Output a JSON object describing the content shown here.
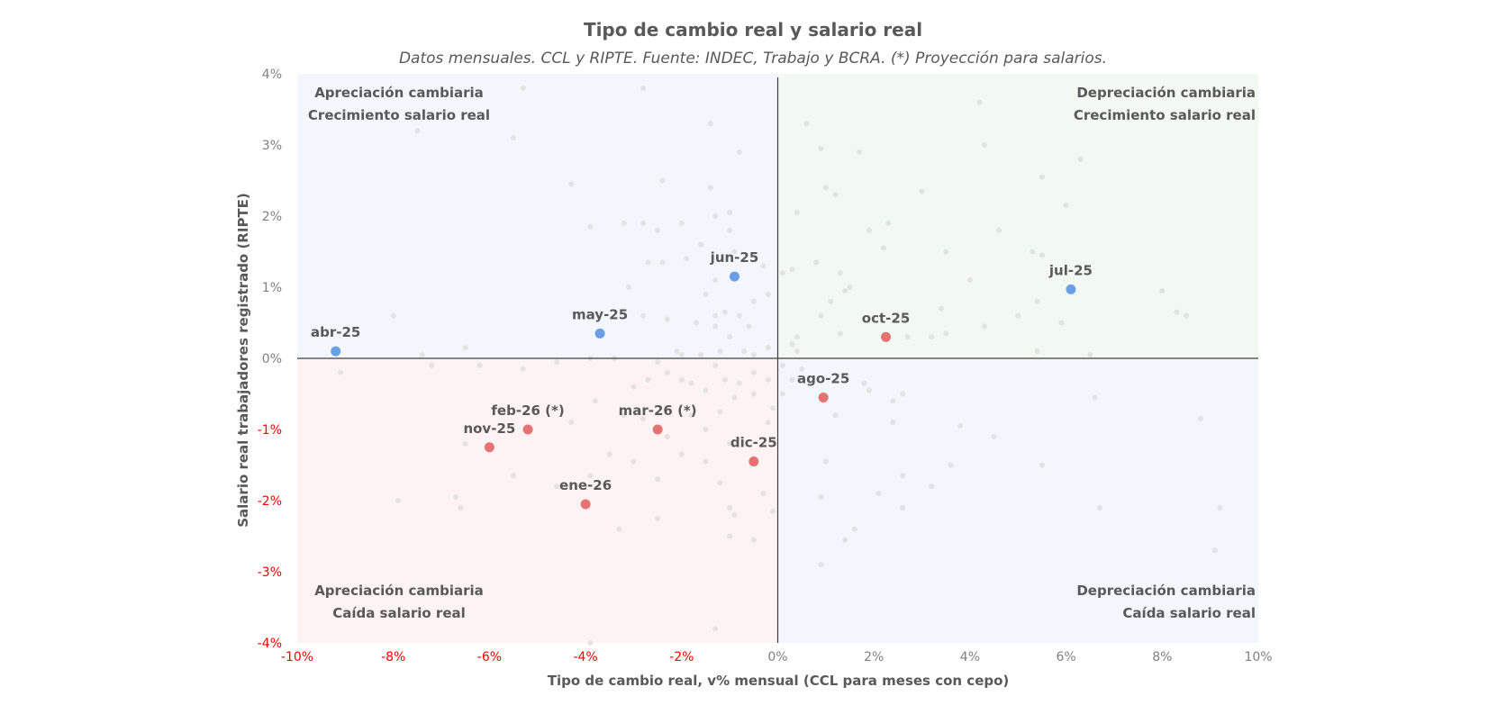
{
  "colors": {
    "highlight_blue": "#6a9ee6",
    "highlight_red": "#e57373",
    "history_gray": "#e3e3e3",
    "negative_tick": "#ff0000",
    "positive_tick": "#808080",
    "quad_blue": "#f3f6fd",
    "quad_green": "#f1f9f2",
    "quad_red": "#fdf3f2",
    "axis_line": "#404040"
  },
  "chart_data": {
    "type": "scatter",
    "title": "Tipo de cambio real y salario real",
    "subtitle": "Datos mensuales. CCL y RIPTE. Fuente: INDEC, Trabajo y BCRA. (*) Proyección para salarios.",
    "xlabel": "Tipo de cambio real, v% mensual (CCL para meses con cepo)",
    "ylabel": "Salario real trabajadores registrado (RIPTE)",
    "xlim": [
      -10,
      10
    ],
    "ylim": [
      -4,
      4
    ],
    "x_ticks": [
      {
        "value": -10,
        "label": "-10%"
      },
      {
        "value": -8,
        "label": "-8%"
      },
      {
        "value": -6,
        "label": "-6%"
      },
      {
        "value": -4,
        "label": "-4%"
      },
      {
        "value": -2,
        "label": "-2%"
      },
      {
        "value": 0,
        "label": "0%"
      },
      {
        "value": 2,
        "label": "2%"
      },
      {
        "value": 4,
        "label": "4%"
      },
      {
        "value": 6,
        "label": "6%"
      },
      {
        "value": 8,
        "label": "8%"
      },
      {
        "value": 10,
        "label": "10%"
      }
    ],
    "y_ticks": [
      {
        "value": 4,
        "label": "4%"
      },
      {
        "value": 3,
        "label": "3%"
      },
      {
        "value": 2,
        "label": "2%"
      },
      {
        "value": 1,
        "label": "1%"
      },
      {
        "value": 0,
        "label": "0%"
      },
      {
        "value": -1,
        "label": "-1%"
      },
      {
        "value": -2,
        "label": "-2%"
      },
      {
        "value": -3,
        "label": "-3%"
      },
      {
        "value": -4,
        "label": "-4%"
      }
    ],
    "quadrants": {
      "top_left": [
        "Apreciación cambiaria",
        "Crecimiento salario real"
      ],
      "top_right": [
        "Depreciación cambiaria",
        "Crecimiento salario real"
      ],
      "bottom_left": [
        "Apreciación cambiaria",
        "Caída salario real"
      ],
      "bottom_right": [
        "Depreciación cambiaria",
        "Caída salario real"
      ]
    },
    "highlighted": [
      {
        "label": "abr-25",
        "x": -9.2,
        "y": 0.1,
        "color": "blue"
      },
      {
        "label": "may-25",
        "x": -3.7,
        "y": 0.35,
        "color": "blue"
      },
      {
        "label": "jun-25",
        "x": -0.9,
        "y": 1.15,
        "color": "blue"
      },
      {
        "label": "jul-25",
        "x": 6.1,
        "y": 0.97,
        "color": "blue"
      },
      {
        "label": "ago-25",
        "x": 0.95,
        "y": -0.55,
        "color": "red"
      },
      {
        "label": "oct-25",
        "x": 2.25,
        "y": 0.3,
        "color": "red"
      },
      {
        "label": "nov-25",
        "x": -6.0,
        "y": -1.25,
        "color": "red"
      },
      {
        "label": "dic-25",
        "x": -0.5,
        "y": -1.45,
        "color": "red"
      },
      {
        "label": "ene-26",
        "x": -4.0,
        "y": -2.05,
        "color": "red"
      },
      {
        "label": "feb-26 (*)",
        "x": -5.2,
        "y": -1.0,
        "color": "red"
      },
      {
        "label": "mar-26 (*)",
        "x": -2.5,
        "y": -1.0,
        "color": "red"
      }
    ],
    "history": [
      [
        -5.3,
        3.8
      ],
      [
        -2.8,
        3.8
      ],
      [
        -7.5,
        3.2
      ],
      [
        -5.5,
        3.1
      ],
      [
        -1.4,
        3.3
      ],
      [
        -0.8,
        2.9
      ],
      [
        0.6,
        3.3
      ],
      [
        0.9,
        2.95
      ],
      [
        1.7,
        2.9
      ],
      [
        4.2,
        3.6
      ],
      [
        4.3,
        3.0
      ],
      [
        5.5,
        2.55
      ],
      [
        6.3,
        2.8
      ],
      [
        6.0,
        2.15
      ],
      [
        3.0,
        2.35
      ],
      [
        1.2,
        2.3
      ],
      [
        1.0,
        2.4
      ],
      [
        0.4,
        2.05
      ],
      [
        2.3,
        1.9
      ],
      [
        1.9,
        1.8
      ],
      [
        2.2,
        1.55
      ],
      [
        3.5,
        1.5
      ],
      [
        4.6,
        1.8
      ],
      [
        5.3,
        1.5
      ],
      [
        5.5,
        1.45
      ],
      [
        4.0,
        1.1
      ],
      [
        8.0,
        0.95
      ],
      [
        8.3,
        0.65
      ],
      [
        8.5,
        0.6
      ],
      [
        3.4,
        0.7
      ],
      [
        4.3,
        0.45
      ],
      [
        5.0,
        0.6
      ],
      [
        5.4,
        0.8
      ],
      [
        5.9,
        0.5
      ],
      [
        6.5,
        0.05
      ],
      [
        5.4,
        0.1
      ],
      [
        3.5,
        0.35
      ],
      [
        2.7,
        0.3
      ],
      [
        1.3,
        0.35
      ],
      [
        0.4,
        0.3
      ],
      [
        0.9,
        0.6
      ],
      [
        1.1,
        0.8
      ],
      [
        1.4,
        0.95
      ],
      [
        1.3,
        1.2
      ],
      [
        0.8,
        1.35
      ],
      [
        1.5,
        1.0
      ],
      [
        2.6,
        0.55
      ],
      [
        3.2,
        0.3
      ],
      [
        0.1,
        1.2
      ],
      [
        0.3,
        1.25
      ],
      [
        -0.3,
        1.3
      ],
      [
        -0.2,
        0.9
      ],
      [
        -0.5,
        0.8
      ],
      [
        -0.8,
        0.6
      ],
      [
        -0.6,
        0.45
      ],
      [
        -1.0,
        0.3
      ],
      [
        -1.3,
        0.6
      ],
      [
        -1.5,
        0.9
      ],
      [
        -1.3,
        1.1
      ],
      [
        -0.9,
        1.5
      ],
      [
        -1.0,
        1.8
      ],
      [
        -1.3,
        2.0
      ],
      [
        -1.0,
        2.05
      ],
      [
        -1.4,
        2.4
      ],
      [
        -1.6,
        1.6
      ],
      [
        -1.9,
        1.4
      ],
      [
        -2.0,
        1.9
      ],
      [
        -2.5,
        1.8
      ],
      [
        -2.8,
        1.9
      ],
      [
        -3.2,
        1.9
      ],
      [
        -3.9,
        1.85
      ],
      [
        -4.3,
        2.45
      ],
      [
        -2.4,
        2.5
      ],
      [
        -2.4,
        1.35
      ],
      [
        -2.7,
        1.35
      ],
      [
        -3.1,
        1.0
      ],
      [
        -2.8,
        0.6
      ],
      [
        -2.3,
        0.55
      ],
      [
        -1.7,
        0.5
      ],
      [
        -1.3,
        0.45
      ],
      [
        -1.1,
        0.65
      ],
      [
        -2.1,
        0.1
      ],
      [
        -2.0,
        0.05
      ],
      [
        -1.6,
        0.05
      ],
      [
        -1.2,
        0.1
      ],
      [
        -0.7,
        0.1
      ],
      [
        -0.5,
        0.05
      ],
      [
        -0.2,
        0.15
      ],
      [
        0.4,
        0.1
      ],
      [
        0.5,
        -0.15
      ],
      [
        0.3,
        0.2
      ],
      [
        0.1,
        -0.1
      ],
      [
        -0.2,
        -0.3
      ],
      [
        -0.5,
        -0.2
      ],
      [
        -0.8,
        -0.35
      ],
      [
        -1.1,
        -0.3
      ],
      [
        -1.3,
        -0.1
      ],
      [
        -1.5,
        -0.45
      ],
      [
        -1.8,
        -0.35
      ],
      [
        -2.0,
        -0.3
      ],
      [
        -2.3,
        -0.2
      ],
      [
        -2.5,
        -0.05
      ],
      [
        -2.7,
        -0.3
      ],
      [
        -3.0,
        -0.4
      ],
      [
        -3.4,
        0.0
      ],
      [
        -3.9,
        0.0
      ],
      [
        -4.6,
        -0.05
      ],
      [
        -5.3,
        -0.15
      ],
      [
        -6.2,
        -0.1
      ],
      [
        -7.2,
        -0.1
      ],
      [
        -7.4,
        0.05
      ],
      [
        -6.5,
        0.15
      ],
      [
        -8.0,
        0.6
      ],
      [
        -9.1,
        -0.2
      ],
      [
        -3.8,
        -0.6
      ],
      [
        -4.3,
        -0.9
      ],
      [
        -3.2,
        -0.8
      ],
      [
        -2.8,
        -0.85
      ],
      [
        -2.3,
        -1.1
      ],
      [
        -1.8,
        -0.8
      ],
      [
        -1.5,
        -1.0
      ],
      [
        -1.2,
        -0.75
      ],
      [
        -0.9,
        -0.55
      ],
      [
        -0.5,
        -0.5
      ],
      [
        -0.2,
        -0.9
      ],
      [
        -1.0,
        -1.2
      ],
      [
        -1.5,
        -1.45
      ],
      [
        -2.0,
        -1.35
      ],
      [
        -2.5,
        -1.7
      ],
      [
        -3.0,
        -1.45
      ],
      [
        -3.5,
        -1.35
      ],
      [
        -3.9,
        -1.65
      ],
      [
        -4.6,
        -1.8
      ],
      [
        -5.5,
        -1.65
      ],
      [
        -6.5,
        -1.2
      ],
      [
        -6.7,
        -1.95
      ],
      [
        -6.6,
        -2.1
      ],
      [
        -7.9,
        -2.0
      ],
      [
        -3.3,
        -2.4
      ],
      [
        -2.5,
        -2.25
      ],
      [
        -1.0,
        -2.1
      ],
      [
        -0.9,
        -2.2
      ],
      [
        -1.2,
        -1.75
      ],
      [
        -0.3,
        -1.9
      ],
      [
        -0.1,
        -2.15
      ],
      [
        -0.5,
        -2.55
      ],
      [
        -1.0,
        -2.5
      ],
      [
        -1.3,
        -3.8
      ],
      [
        -3.9,
        -4.0
      ],
      [
        0.9,
        -2.9
      ],
      [
        0.9,
        -1.95
      ],
      [
        1.0,
        -1.45
      ],
      [
        1.4,
        -2.55
      ],
      [
        1.6,
        -2.4
      ],
      [
        2.1,
        -1.9
      ],
      [
        2.6,
        -2.1
      ],
      [
        3.2,
        -1.8
      ],
      [
        3.6,
        -1.5
      ],
      [
        2.6,
        -1.65
      ],
      [
        2.4,
        -0.9
      ],
      [
        1.2,
        -0.8
      ],
      [
        1.8,
        -0.35
      ],
      [
        1.9,
        -0.45
      ],
      [
        2.4,
        -0.6
      ],
      [
        2.6,
        -0.5
      ],
      [
        3.8,
        -0.95
      ],
      [
        4.5,
        -1.1
      ],
      [
        5.5,
        -1.5
      ],
      [
        6.7,
        -2.1
      ],
      [
        6.6,
        -0.55
      ],
      [
        8.8,
        -0.85
      ],
      [
        9.1,
        -2.7
      ],
      [
        9.2,
        -2.1
      ],
      [
        0.1,
        -0.5
      ],
      [
        -0.1,
        -0.7
      ],
      [
        0.3,
        -0.3
      ]
    ]
  }
}
